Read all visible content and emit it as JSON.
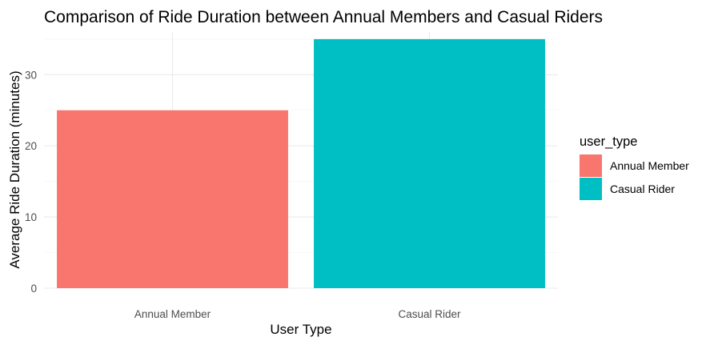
{
  "chart_data": {
    "type": "bar",
    "title": "Comparison of Ride Duration between Annual Members and Casual Riders",
    "xlabel": "User Type",
    "ylabel": "Average Ride Duration (minutes)",
    "categories": [
      "Annual Member",
      "Casual Rider"
    ],
    "values": [
      25,
      35
    ],
    "colors": [
      "#F8766D",
      "#00BFC4"
    ],
    "ylim": [
      0,
      36
    ],
    "yticks": [
      0,
      10,
      20,
      30
    ],
    "grid": true,
    "legend": {
      "title": "user_type",
      "placement": "right",
      "entries": [
        "Annual Member",
        "Casual Rider"
      ]
    }
  }
}
